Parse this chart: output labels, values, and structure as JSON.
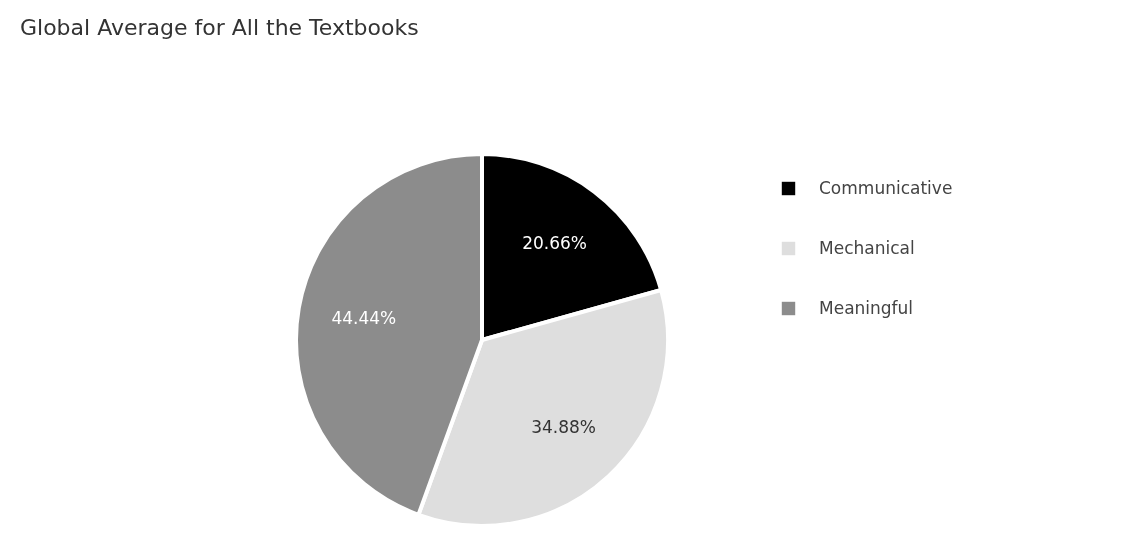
{
  "chart_data": {
    "type": "pie",
    "title": "Global Average for All the Textbooks",
    "categories": [
      "Communicative",
      "Mechanical",
      "Meaningful"
    ],
    "values": [
      20.66,
      34.88,
      44.44
    ],
    "colors": [
      "#000000",
      "#dedede",
      "#8c8c8c"
    ],
    "value_labels": [
      "20.66%",
      "34.88%",
      "44.44%"
    ],
    "legend": "right"
  }
}
